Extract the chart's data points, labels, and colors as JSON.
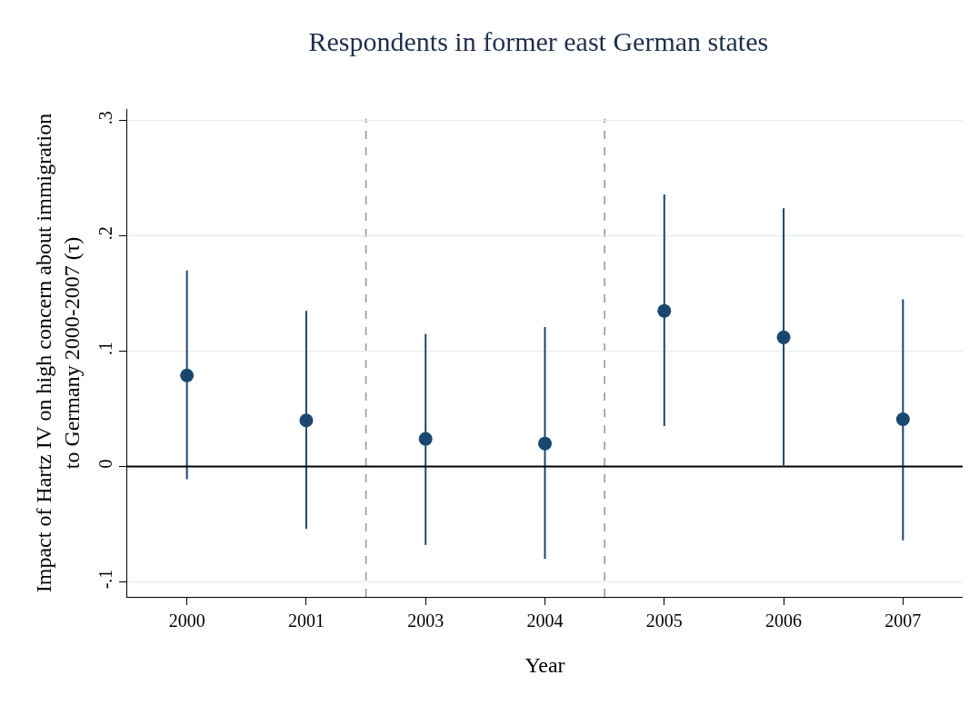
{
  "chart_data": {
    "type": "scatter",
    "title": "Respondents in former east German states",
    "xlabel": "Year",
    "ylabel": "Impact of Hartz IV on high concern about immigration\nto Germany 2000-2007 (τ)",
    "categories": [
      "2000",
      "2001",
      "2003",
      "2004",
      "2005",
      "2006",
      "2007"
    ],
    "series": [
      {
        "color": "#1a476f",
        "values": [
          0.079,
          0.04,
          0.024,
          0.02,
          0.135,
          0.112,
          0.041
        ],
        "errors": [
          [
            -0.011,
            0.17
          ],
          [
            -0.054,
            0.135
          ],
          [
            -0.068,
            0.115
          ],
          [
            -0.08,
            0.121
          ],
          [
            0.035,
            0.236
          ],
          [
            0.001,
            0.224
          ],
          [
            -0.064,
            0.145
          ]
        ]
      }
    ],
    "ylim": [
      -0.113,
      0.31
    ],
    "yticks": [
      {
        "value": -0.1,
        "label": "-.1"
      },
      0,
      {
        "value": 0.1,
        "label": ".1"
      },
      {
        "value": 0.2,
        "label": ".2"
      },
      {
        "value": 0.3,
        "label": ".3"
      }
    ],
    "ref_lines": [
      {
        "axis": "y",
        "value": 0,
        "color": "#000000",
        "line_style": "solid"
      }
    ],
    "grid": "y",
    "marker": "circle"
  }
}
